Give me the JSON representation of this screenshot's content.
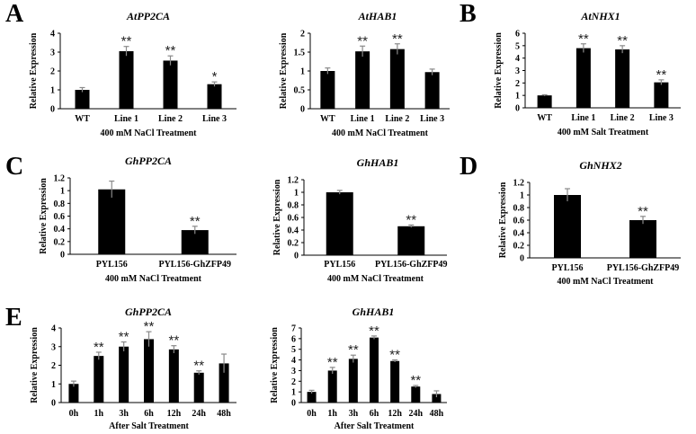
{
  "figure": {
    "panel_letters": [
      "A",
      "B",
      "C",
      "D",
      "E"
    ]
  },
  "chart_data": [
    {
      "id": "a1",
      "panel": "A",
      "type": "bar",
      "title": "AtPP2CA",
      "categories": [
        "WT",
        "Line 1",
        "Line 2",
        "Line 3"
      ],
      "values": [
        1.0,
        3.05,
        2.55,
        1.3
      ],
      "errors": [
        0.12,
        0.25,
        0.25,
        0.12
      ],
      "significance": [
        "",
        "**",
        "**",
        "*"
      ],
      "ylabel": "Relative Expression",
      "xlabel": "400 mM NaCl Treatment",
      "ylim": [
        0,
        4
      ],
      "yticks": [
        "0",
        "1",
        "2",
        "3",
        "4"
      ]
    },
    {
      "id": "a2",
      "panel": "A",
      "type": "bar",
      "title": "AtHAB1",
      "categories": [
        "WT",
        "Line 1",
        "Line 2",
        "Line 3"
      ],
      "values": [
        1.0,
        1.52,
        1.58,
        0.97
      ],
      "errors": [
        0.08,
        0.14,
        0.14,
        0.08
      ],
      "significance": [
        "",
        "**",
        "**",
        ""
      ],
      "ylabel": "Relative Expression",
      "xlabel": "400 mM NaCl Treatment",
      "ylim": [
        0,
        2
      ],
      "yticks": [
        "0",
        "0.5",
        "1",
        "1.5",
        "2"
      ]
    },
    {
      "id": "b",
      "panel": "B",
      "type": "bar",
      "title": "AtNHX1",
      "categories": [
        "WT",
        "Line 1",
        "Line 2",
        "Line 3"
      ],
      "values": [
        1.0,
        4.8,
        4.7,
        2.05
      ],
      "errors": [
        0.05,
        0.35,
        0.3,
        0.2
      ],
      "significance": [
        "",
        "**",
        "**",
        "**"
      ],
      "ylabel": "Relative Expression",
      "xlabel": "400 mM  Salt  Treatment",
      "ylim": [
        0,
        6
      ],
      "yticks": [
        "0",
        "1",
        "2",
        "3",
        "4",
        "5",
        "6"
      ]
    },
    {
      "id": "c1",
      "panel": "C",
      "type": "bar",
      "title": "GhPP2CA",
      "categories": [
        "PYL156",
        "PYL156-GhZFP49"
      ],
      "values": [
        1.02,
        0.38
      ],
      "errors": [
        0.13,
        0.06
      ],
      "significance": [
        "",
        "**"
      ],
      "ylabel": "Relative Expression",
      "xlabel": "400 mM NaCl Treatment",
      "ylim": [
        0,
        1.2
      ],
      "yticks": [
        "0",
        "0.2",
        "0.4",
        "0.6",
        "0.8",
        "1",
        "1.2"
      ]
    },
    {
      "id": "c2",
      "panel": "C",
      "type": "bar",
      "title": "GhHAB1",
      "categories": [
        "PYL156",
        "PYL156-GhZFP49"
      ],
      "values": [
        1.0,
        0.46
      ],
      "errors": [
        0.03,
        0.02
      ],
      "significance": [
        "",
        "**"
      ],
      "ylabel": "Relative Expression",
      "xlabel": "400 mM NaCl Treatment",
      "ylim": [
        0,
        1.2
      ],
      "yticks": [
        "0",
        "0.2",
        "0.4",
        "0.6",
        "0.8",
        "1",
        "1.2"
      ]
    },
    {
      "id": "d",
      "panel": "D",
      "type": "bar",
      "title": "GhNHX2",
      "categories": [
        "PYL156",
        "PYL156-GhZFP49"
      ],
      "values": [
        1.0,
        0.6
      ],
      "errors": [
        0.1,
        0.06
      ],
      "significance": [
        "",
        "**"
      ],
      "ylabel": "Relative Expression",
      "xlabel": "400 mM NaCl Treatment",
      "ylim": [
        0,
        1.2
      ],
      "yticks": [
        "0",
        "0.2",
        "0.4",
        "0.6",
        "0.8",
        "1",
        "1.2"
      ]
    },
    {
      "id": "e1",
      "panel": "E",
      "type": "bar",
      "title": "GhPP2CA",
      "categories": [
        "0h",
        "1h",
        "3h",
        "6h",
        "12h",
        "24h",
        "48h"
      ],
      "values": [
        1.0,
        2.5,
        3.0,
        3.4,
        2.85,
        1.6,
        2.1
      ],
      "errors": [
        0.15,
        0.2,
        0.25,
        0.4,
        0.2,
        0.1,
        0.5
      ],
      "significance": [
        "",
        "**",
        "**",
        "**",
        "**",
        "**",
        ""
      ],
      "ylabel": "Relative Expression",
      "xlabel": "After Salt Treatment",
      "ylim": [
        0,
        4
      ],
      "yticks": [
        "0",
        "1",
        "2",
        "3",
        "4"
      ]
    },
    {
      "id": "e2",
      "panel": "E",
      "type": "bar",
      "title": "GhHAB1",
      "categories": [
        "0h",
        "1h",
        "3h",
        "6h",
        "12h",
        "24h",
        "48h"
      ],
      "values": [
        1.0,
        3.0,
        4.1,
        6.1,
        3.9,
        1.5,
        0.8
      ],
      "errors": [
        0.15,
        0.3,
        0.35,
        0.15,
        0.1,
        0.1,
        0.3
      ],
      "significance": [
        "",
        "**",
        "**",
        "**",
        "**",
        "**",
        ""
      ],
      "ylabel": "Relative Expression",
      "xlabel": "After Salt Treatment",
      "ylim": [
        0,
        7
      ],
      "yticks": [
        "0",
        "1",
        "2",
        "3",
        "4",
        "5",
        "6",
        "7"
      ]
    }
  ]
}
